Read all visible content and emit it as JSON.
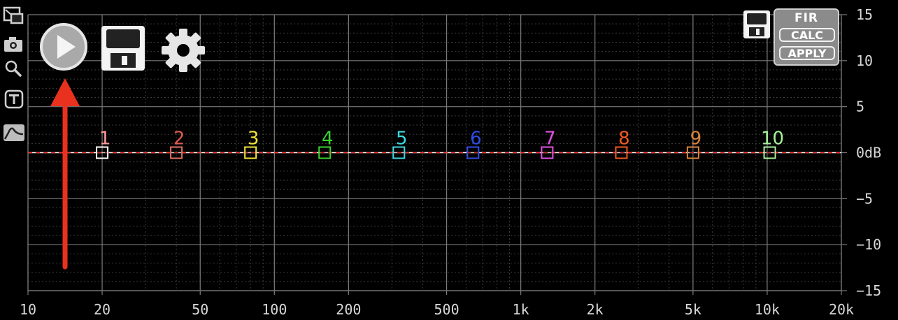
{
  "toolbar": {
    "play_button": "play-icon",
    "save_button": "floppy-disk-icon",
    "settings_button": "gear-icon"
  },
  "sidebar": {
    "items": [
      {
        "name": "window-resize",
        "icon": "window-resize-icon"
      },
      {
        "name": "camera",
        "icon": "camera-icon"
      },
      {
        "name": "zoom",
        "icon": "magnifier-icon"
      },
      {
        "name": "text",
        "icon": "text-t-icon"
      },
      {
        "name": "curve",
        "icon": "curve-icon"
      }
    ]
  },
  "fir_panel": {
    "title": "FIR",
    "calc_label": "CALC",
    "apply_label": "APPLY",
    "save_icon": "floppy-disk-icon"
  },
  "graph": {
    "x_ticks": [
      {
        "label": "10",
        "value": 10
      },
      {
        "label": "20",
        "value": 20
      },
      {
        "label": "50",
        "value": 50
      },
      {
        "label": "100",
        "value": 100
      },
      {
        "label": "200",
        "value": 200
      },
      {
        "label": "500",
        "value": 500
      },
      {
        "label": "1k",
        "value": 1000
      },
      {
        "label": "2k",
        "value": 2000
      },
      {
        "label": "5k",
        "value": 5000
      },
      {
        "label": "10k",
        "value": 10000
      },
      {
        "label": "20k",
        "value": 20000
      }
    ],
    "y_ticks": [
      {
        "label": "15",
        "value": 15
      },
      {
        "label": "10",
        "value": 10
      },
      {
        "label": "5",
        "value": 5
      },
      {
        "label": "0dB",
        "value": 0
      },
      {
        "label": "−5",
        "value": -5
      },
      {
        "label": "−10",
        "value": -10
      },
      {
        "label": "−15",
        "value": -15
      }
    ],
    "x_range_hz": [
      10,
      20000
    ],
    "y_range_db": [
      -15,
      15
    ],
    "bands": [
      {
        "label": "1",
        "freq": 20,
        "gain": 0,
        "color": "#ff9999",
        "marker_color": "#ffffff"
      },
      {
        "label": "2",
        "freq": 40,
        "gain": 0,
        "color": "#e05a50",
        "marker_color": "#e07060"
      },
      {
        "label": "3",
        "freq": 80,
        "gain": 0,
        "color": "#f1e33a",
        "marker_color": "#f1e33a"
      },
      {
        "label": "4",
        "freq": 160,
        "gain": 0,
        "color": "#39d32f",
        "marker_color": "#39d32f"
      },
      {
        "label": "5",
        "freq": 320,
        "gain": 0,
        "color": "#3dd8e0",
        "marker_color": "#3dd8e0"
      },
      {
        "label": "6",
        "freq": 640,
        "gain": 0,
        "color": "#2f4de3",
        "marker_color": "#2f4de3"
      },
      {
        "label": "7",
        "freq": 1280,
        "gain": 0,
        "color": "#e052e3",
        "marker_color": "#e052e3"
      },
      {
        "label": "8",
        "freq": 2560,
        "gain": 0,
        "color": "#f05a22",
        "marker_color": "#f05a22"
      },
      {
        "label": "9",
        "freq": 5000,
        "gain": 0,
        "color": "#d9843a",
        "marker_color": "#d9843a"
      },
      {
        "label": "10",
        "freq": 10240,
        "gain": 0,
        "color": "#a8f09a",
        "marker_color": "#a8f09a"
      }
    ]
  },
  "colors": {
    "background": "#000000",
    "grid_major": "#7a7a7a",
    "grid_minor": "#3c3c3c",
    "zero_line": "#ff3030",
    "label_text": "#d8d8d8",
    "annotation_arrow": "#e8321f"
  }
}
